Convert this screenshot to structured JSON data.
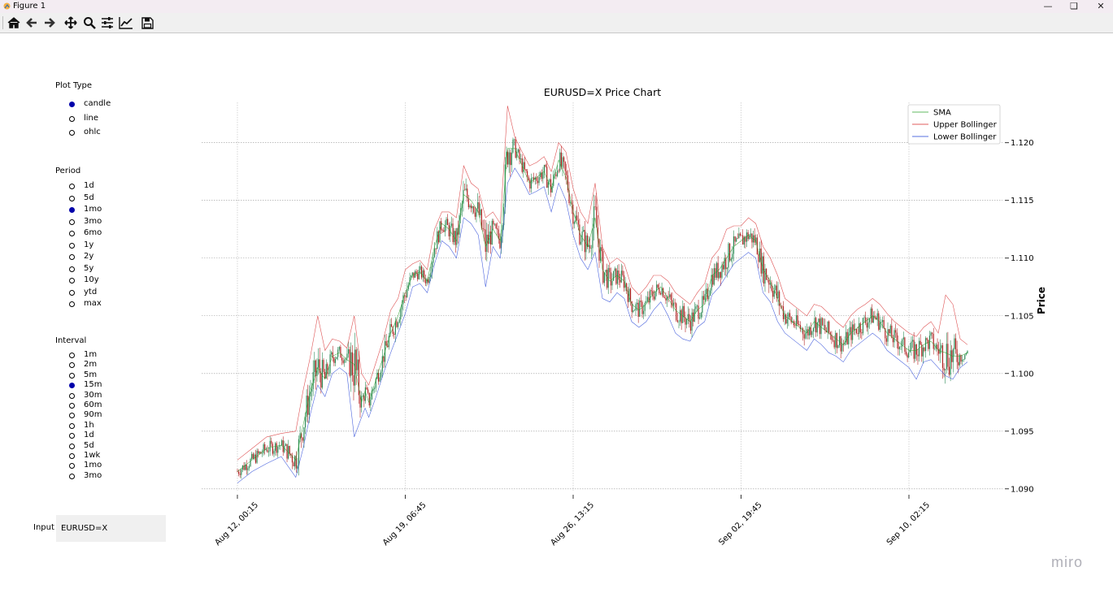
{
  "window": {
    "title": "Figure 1"
  },
  "toolbar": {
    "buttons": [
      {
        "name": "home-icon"
      },
      {
        "name": "back-icon"
      },
      {
        "name": "forward-icon"
      },
      {
        "name": "pan-icon"
      },
      {
        "name": "zoom-icon"
      },
      {
        "name": "configure-subplots-icon"
      },
      {
        "name": "edit-axis-icon"
      },
      {
        "name": "save-icon"
      }
    ]
  },
  "plot_type": {
    "title": "Plot Type",
    "options": [
      "candle",
      "line",
      "ohlc"
    ],
    "selected": "candle"
  },
  "period": {
    "title": "Period",
    "options": [
      "1d",
      "5d",
      "1mo",
      "3mo",
      "6mo",
      "1y",
      "2y",
      "5y",
      "10y",
      "ytd",
      "max"
    ],
    "selected": "1mo"
  },
  "interval": {
    "title": "Interval",
    "options": [
      "1m",
      "2m",
      "5m",
      "15m",
      "30m",
      "60m",
      "90m",
      "1h",
      "1d",
      "5d",
      "1wk",
      "1mo",
      "3mo"
    ],
    "selected": "15m"
  },
  "input": {
    "label": "Input",
    "value": "EURUSD=X"
  },
  "watermark": "miro",
  "colors": {
    "sma": "#2ca02c",
    "upper": "#d62728",
    "lower": "#1f3fd6",
    "up_candle": "#2e8b57",
    "down_candle": "#b22222",
    "radio_selected": "#0000aa"
  },
  "chart_data": {
    "type": "candlestick",
    "title": "EURUSD=X Price Chart",
    "ylabel": "Price",
    "xlabel": "",
    "ylim": [
      1.089,
      1.1235
    ],
    "yticks": [
      1.09,
      1.095,
      1.1,
      1.105,
      1.11,
      1.115,
      1.12
    ],
    "xticks": [
      "Aug 12, 00:15",
      "Aug 19, 06:45",
      "Aug 26, 13:15",
      "Sep 02, 19:45",
      "Sep 10, 02:15"
    ],
    "grid": true,
    "legend_position": "top-right",
    "legend": [
      "SMA",
      "Upper Bollinger",
      "Lower Bollinger"
    ],
    "series": [
      {
        "name": "SMA",
        "x": [
          0,
          0.02,
          0.04,
          0.06,
          0.08,
          0.09,
          0.1,
          0.11,
          0.12,
          0.13,
          0.14,
          0.15,
          0.16,
          0.17,
          0.175,
          0.18,
          0.19,
          0.2,
          0.21,
          0.22,
          0.23,
          0.24,
          0.25,
          0.26,
          0.27,
          0.28,
          0.29,
          0.3,
          0.31,
          0.32,
          0.33,
          0.34,
          0.35,
          0.36,
          0.37,
          0.38,
          0.39,
          0.4,
          0.41,
          0.42,
          0.43,
          0.44,
          0.45,
          0.46,
          0.47,
          0.48,
          0.49,
          0.5,
          0.51,
          0.52,
          0.53,
          0.54,
          0.55,
          0.56,
          0.57,
          0.58,
          0.59,
          0.6,
          0.61,
          0.62,
          0.63,
          0.64,
          0.65,
          0.66,
          0.67,
          0.68,
          0.69,
          0.7,
          0.71,
          0.72,
          0.73,
          0.74,
          0.75,
          0.76,
          0.77,
          0.78,
          0.79,
          0.8,
          0.81,
          0.82,
          0.83,
          0.84,
          0.85,
          0.86,
          0.87,
          0.88,
          0.89,
          0.9,
          0.91,
          0.92,
          0.93,
          0.94,
          0.95,
          0.96,
          0.97,
          0.98,
          0.99,
          1.0
        ],
        "values": [
          1.0915,
          1.0925,
          1.0935,
          1.0938,
          1.0925,
          1.0955,
          1.0985,
          1.1005,
          1.0995,
          1.1015,
          1.1018,
          1.1012,
          1.1008,
          1.0975,
          1.0985,
          1.0975,
          1.0995,
          1.1015,
          1.1035,
          1.105,
          1.107,
          1.1085,
          1.1088,
          1.108,
          1.111,
          1.113,
          1.1125,
          1.1115,
          1.1155,
          1.115,
          1.114,
          1.111,
          1.1125,
          1.1115,
          1.1195,
          1.1195,
          1.118,
          1.1165,
          1.117,
          1.1175,
          1.116,
          1.1185,
          1.117,
          1.114,
          1.112,
          1.111,
          1.1135,
          1.109,
          1.108,
          1.1085,
          1.108,
          1.106,
          1.1055,
          1.106,
          1.107,
          1.1075,
          1.1065,
          1.1055,
          1.105,
          1.1045,
          1.1055,
          1.106,
          1.1085,
          1.109,
          1.11,
          1.111,
          1.1115,
          1.112,
          1.1115,
          1.109,
          1.108,
          1.1065,
          1.105,
          1.1045,
          1.104,
          1.1035,
          1.1045,
          1.104,
          1.1035,
          1.103,
          1.1025,
          1.1035,
          1.104,
          1.1045,
          1.105,
          1.1045,
          1.1035,
          1.103,
          1.1025,
          1.102,
          1.102,
          1.1025,
          1.1028,
          1.102,
          1.1018,
          1.1015,
          1.1015,
          1.1018
        ]
      },
      {
        "name": "Upper Bollinger",
        "x": [
          0,
          0.02,
          0.04,
          0.06,
          0.08,
          0.09,
          0.1,
          0.11,
          0.12,
          0.13,
          0.14,
          0.15,
          0.16,
          0.17,
          0.175,
          0.18,
          0.19,
          0.2,
          0.21,
          0.22,
          0.23,
          0.24,
          0.25,
          0.26,
          0.27,
          0.28,
          0.29,
          0.3,
          0.31,
          0.32,
          0.33,
          0.34,
          0.35,
          0.36,
          0.37,
          0.38,
          0.39,
          0.4,
          0.41,
          0.42,
          0.43,
          0.44,
          0.45,
          0.46,
          0.47,
          0.48,
          0.49,
          0.5,
          0.51,
          0.52,
          0.53,
          0.54,
          0.55,
          0.56,
          0.57,
          0.58,
          0.59,
          0.6,
          0.61,
          0.62,
          0.63,
          0.64,
          0.65,
          0.66,
          0.67,
          0.68,
          0.69,
          0.7,
          0.71,
          0.72,
          0.73,
          0.74,
          0.75,
          0.76,
          0.77,
          0.78,
          0.79,
          0.8,
          0.81,
          0.82,
          0.83,
          0.84,
          0.85,
          0.86,
          0.87,
          0.88,
          0.89,
          0.9,
          0.91,
          0.92,
          0.93,
          0.94,
          0.95,
          0.96,
          0.97,
          0.98,
          0.99,
          1.0
        ],
        "values": [
          1.0925,
          1.0935,
          1.0945,
          1.0948,
          1.095,
          1.0985,
          1.1015,
          1.105,
          1.102,
          1.103,
          1.1028,
          1.1022,
          1.105,
          1.1,
          1.0995,
          1.099,
          1.101,
          1.103,
          1.1055,
          1.1065,
          1.109,
          1.1095,
          1.1098,
          1.109,
          1.1125,
          1.114,
          1.114,
          1.1135,
          1.118,
          1.1165,
          1.116,
          1.1135,
          1.114,
          1.113,
          1.1232,
          1.1205,
          1.1192,
          1.118,
          1.1183,
          1.1188,
          1.1175,
          1.12,
          1.1192,
          1.116,
          1.114,
          1.113,
          1.1165,
          1.111,
          1.1095,
          1.11,
          1.1095,
          1.1075,
          1.1068,
          1.1075,
          1.1085,
          1.1085,
          1.108,
          1.107,
          1.1065,
          1.106,
          1.107,
          1.1078,
          1.11,
          1.1108,
          1.1125,
          1.1128,
          1.1128,
          1.1135,
          1.113,
          1.111,
          1.11,
          1.1085,
          1.1065,
          1.106,
          1.1055,
          1.105,
          1.106,
          1.1058,
          1.1052,
          1.1045,
          1.104,
          1.105,
          1.1056,
          1.106,
          1.1065,
          1.106,
          1.1052,
          1.1045,
          1.104,
          1.1035,
          1.1032,
          1.104,
          1.1045,
          1.1035,
          1.1068,
          1.106,
          1.103,
          1.1025
        ]
      },
      {
        "name": "Lower Bollinger",
        "x": [
          0,
          0.02,
          0.04,
          0.06,
          0.08,
          0.09,
          0.1,
          0.11,
          0.12,
          0.13,
          0.14,
          0.15,
          0.16,
          0.17,
          0.175,
          0.18,
          0.19,
          0.2,
          0.21,
          0.22,
          0.23,
          0.24,
          0.25,
          0.26,
          0.27,
          0.28,
          0.29,
          0.3,
          0.31,
          0.32,
          0.33,
          0.34,
          0.35,
          0.36,
          0.37,
          0.38,
          0.39,
          0.4,
          0.41,
          0.42,
          0.43,
          0.44,
          0.45,
          0.46,
          0.47,
          0.48,
          0.49,
          0.5,
          0.51,
          0.52,
          0.53,
          0.54,
          0.55,
          0.56,
          0.57,
          0.58,
          0.59,
          0.6,
          0.61,
          0.62,
          0.63,
          0.64,
          0.65,
          0.66,
          0.67,
          0.68,
          0.69,
          0.7,
          0.71,
          0.72,
          0.73,
          0.74,
          0.75,
          0.76,
          0.77,
          0.78,
          0.79,
          0.8,
          0.81,
          0.82,
          0.83,
          0.84,
          0.85,
          0.86,
          0.87,
          0.88,
          0.89,
          0.9,
          0.91,
          0.92,
          0.93,
          0.94,
          0.95,
          0.96,
          0.97,
          0.98,
          0.99,
          1.0
        ],
        "values": [
          1.0905,
          1.0915,
          1.0922,
          1.0928,
          1.091,
          1.0935,
          1.0965,
          1.099,
          1.098,
          1.1,
          1.1005,
          1.1,
          1.0945,
          1.0962,
          1.097,
          1.0962,
          1.098,
          1.1,
          1.1018,
          1.1035,
          1.1052,
          1.1075,
          1.1078,
          1.107,
          1.1095,
          1.1115,
          1.111,
          1.11,
          1.1135,
          1.113,
          1.112,
          1.1075,
          1.111,
          1.11,
          1.1165,
          1.1178,
          1.1168,
          1.1155,
          1.1158,
          1.1162,
          1.114,
          1.1165,
          1.115,
          1.112,
          1.11,
          1.109,
          1.1105,
          1.1065,
          1.1062,
          1.107,
          1.1065,
          1.1045,
          1.104,
          1.1045,
          1.1055,
          1.1062,
          1.105,
          1.1035,
          1.103,
          1.1028,
          1.104,
          1.1045,
          1.1068,
          1.1075,
          1.1085,
          1.1095,
          1.11,
          1.1105,
          1.11,
          1.107,
          1.1062,
          1.1045,
          1.1035,
          1.103,
          1.1025,
          1.102,
          1.103,
          1.1025,
          1.1018,
          1.1015,
          1.101,
          1.102,
          1.1025,
          1.103,
          1.1035,
          1.103,
          1.102,
          1.1015,
          1.101,
          1.1005,
          1.0995,
          1.101,
          1.1012,
          1.1005,
          1.0998,
          1.0995,
          1.1005,
          1.101
        ]
      }
    ]
  }
}
